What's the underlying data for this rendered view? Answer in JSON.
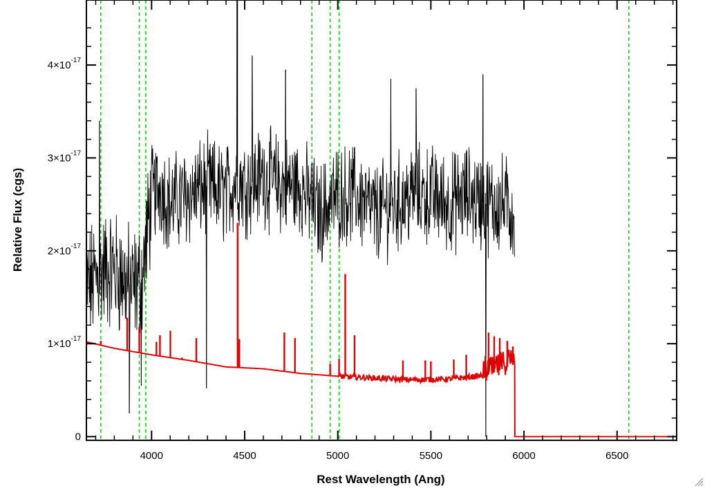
{
  "chart_data": {
    "type": "line",
    "title": "",
    "xlabel": "Rest Wavelength (Ang)",
    "ylabel": "Relative Flux (cgs)",
    "xlim": [
      3650,
      6820
    ],
    "ylim": [
      -4e-19,
      4.7e-17
    ],
    "x_ticks": [
      4000,
      4500,
      5000,
      5500,
      6000,
      6500
    ],
    "x_tick_labels": [
      "4000",
      "4500",
      "5000",
      "5500",
      "6000",
      "6500"
    ],
    "y_ticks": [
      0,
      1e-17,
      2e-17,
      3e-17,
      4e-17
    ],
    "y_tick_labels": [
      {
        "mantissa": "0",
        "exponent": ""
      },
      {
        "mantissa": "1×10",
        "exponent": "-17"
      },
      {
        "mantissa": "2×10",
        "exponent": "-17"
      },
      {
        "mantissa": "3×10",
        "exponent": "-17"
      },
      {
        "mantissa": "4×10",
        "exponent": "-17"
      }
    ],
    "colors": {
      "observed": "#000000",
      "model": "#e00000",
      "lines": "#00dd00"
    },
    "vertical_lines": [
      3727,
      3934,
      3969,
      4861,
      4959,
      5007,
      6563
    ],
    "series": [
      {
        "color": "#000000",
        "style": "observed-noisy",
        "x": [
          3650,
          3700,
          3750,
          3800,
          3850,
          3900,
          3950,
          4000,
          4050,
          4100,
          4200,
          4300,
          4400,
          4460,
          4500,
          4600,
          4700,
          4800,
          4900,
          5000,
          5100,
          5200,
          5300,
          5400,
          5500,
          5600,
          5700,
          5800,
          5900,
          5950
        ],
        "y": [
          1.6e-17,
          1.7e-17,
          1.8e-17,
          1.8e-17,
          1.7e-17,
          1.6e-17,
          1.7e-17,
          2.6e-17,
          2.7e-17,
          2.5e-17,
          2.6e-17,
          2.7e-17,
          2.6e-17,
          2.8e-17,
          2.7e-17,
          2.8e-17,
          2.7e-17,
          2.7e-17,
          2.4e-17,
          2.6e-17,
          2.6e-17,
          2.4e-17,
          2.5e-17,
          2.6e-17,
          2.6e-17,
          2.5e-17,
          2.6e-17,
          2.5e-17,
          2.5e-17,
          2.4e-17
        ]
      },
      {
        "color": "#e00000",
        "style": "model",
        "x": [
          3650,
          3800,
          4000,
          4200,
          4400,
          4600,
          4800,
          5000,
          5200,
          5400,
          5600,
          5800,
          5950,
          5951,
          6820
        ],
        "y": [
          1.02e-17,
          9.5e-18,
          8.8e-18,
          8.2e-18,
          7.5e-18,
          7.3e-18,
          6.8e-18,
          6.5e-18,
          6.3e-18,
          6.1e-18,
          6.2e-18,
          6.6e-18,
          7.8e-18,
          0.0,
          0.0
        ],
        "emission_spikes": [
          {
            "x": 3727,
            "y": 1.03e-17
          },
          {
            "x": 3869,
            "y": 1.28e-17
          },
          {
            "x": 3934,
            "y": 1.18e-17
          },
          {
            "x": 4026,
            "y": 1.02e-17
          },
          {
            "x": 4045,
            "y": 1.09e-17
          },
          {
            "x": 4101,
            "y": 1.14e-17
          },
          {
            "x": 4163,
            "y": 8.5e-18
          },
          {
            "x": 4240,
            "y": 1.06e-17
          },
          {
            "x": 4462,
            "y": 2.3e-17
          },
          {
            "x": 4471,
            "y": 1.05e-17
          },
          {
            "x": 4713,
            "y": 1.12e-17
          },
          {
            "x": 4770,
            "y": 1.06e-17
          },
          {
            "x": 4959,
            "y": 7.8e-18
          },
          {
            "x": 5007,
            "y": 8.4e-18
          },
          {
            "x": 5040,
            "y": 1.75e-17
          },
          {
            "x": 5090,
            "y": 1.09e-17
          },
          {
            "x": 5350,
            "y": 8.2e-18
          },
          {
            "x": 5470,
            "y": 8.2e-18
          },
          {
            "x": 5500,
            "y": 8.1e-18
          },
          {
            "x": 5623,
            "y": 8.3e-18
          },
          {
            "x": 5690,
            "y": 8.8e-18
          },
          {
            "x": 5810,
            "y": 1.12e-17
          },
          {
            "x": 5840,
            "y": 1.08e-17
          },
          {
            "x": 5870,
            "y": 1.06e-17
          },
          {
            "x": 5910,
            "y": 1.03e-17
          },
          {
            "x": 5940,
            "y": 9.7e-18
          }
        ]
      }
    ],
    "observed_outliers": [
      {
        "x": 3720,
        "y": 3.4e-17
      },
      {
        "x": 3880,
        "y": 2.5e-18
      },
      {
        "x": 3945,
        "y": 5.5e-18
      },
      {
        "x": 4295,
        "y": 5.2e-18
      },
      {
        "x": 4460,
        "y": 4.7e-17
      },
      {
        "x": 4540,
        "y": 4.1e-17
      },
      {
        "x": 4720,
        "y": 3.95e-17
      },
      {
        "x": 5285,
        "y": 3.85e-17
      },
      {
        "x": 5420,
        "y": 3.75e-17
      },
      {
        "x": 5780,
        "y": 3.9e-17
      },
      {
        "x": 5795,
        "y": 0.0
      }
    ]
  }
}
